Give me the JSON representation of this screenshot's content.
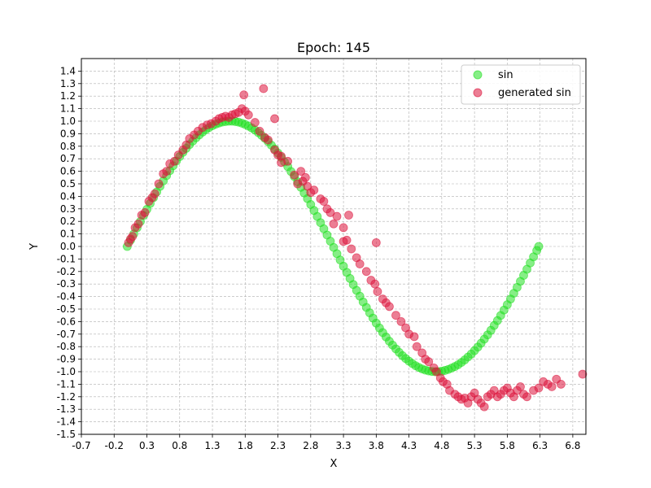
{
  "chart_data": {
    "type": "scatter",
    "title": "Epoch: 145",
    "xlabel": "X",
    "ylabel": "Y",
    "xlim": [
      -0.7,
      7.0
    ],
    "ylim": [
      -1.5,
      1.5
    ],
    "xticks": [
      -0.7,
      -0.2,
      0.3,
      0.8,
      1.3,
      1.8,
      2.3,
      2.8,
      3.3,
      3.8,
      4.3,
      4.8,
      5.3,
      5.8,
      6.3,
      6.8
    ],
    "xtick_labels": [
      "-0.7",
      "-0.2",
      "0.3",
      "0.8",
      "1.3",
      "1.8",
      "2.3",
      "2.8",
      "3.3",
      "3.8",
      "4.3",
      "4.8",
      "5.3",
      "5.8",
      "6.3",
      "6.8"
    ],
    "yticks": [
      -1.5,
      -1.4,
      -1.3,
      -1.2,
      -1.1,
      -1.0,
      -0.9,
      -0.8,
      -0.7,
      -0.6,
      -0.5,
      -0.4,
      -0.3,
      -0.2,
      -0.1,
      0.0,
      0.1,
      0.2,
      0.3,
      0.4,
      0.5,
      0.6,
      0.7,
      0.8,
      0.9,
      1.0,
      1.1,
      1.2,
      1.3,
      1.4
    ],
    "ytick_labels": [
      "-1.5",
      "-1.4",
      "-1.3",
      "-1.2",
      "-1.1",
      "-1.0",
      "-0.9",
      "-0.8",
      "-0.7",
      "-0.6",
      "-0.5",
      "-0.4",
      "-0.3",
      "-0.2",
      "-0.1",
      "0.0",
      "0.1",
      "0.2",
      "0.3",
      "0.4",
      "0.5",
      "0.6",
      "0.7",
      "0.8",
      "0.9",
      "1.0",
      "1.1",
      "1.2",
      "1.3",
      "1.4"
    ],
    "grid": true,
    "legend_position": "top-right",
    "series": [
      {
        "name": "sin",
        "color": "#22e022",
        "x": [
          0.0,
          0.05,
          0.1,
          0.15,
          0.2,
          0.25,
          0.3,
          0.35,
          0.4,
          0.45,
          0.5,
          0.55,
          0.6,
          0.65,
          0.7,
          0.75,
          0.8,
          0.85,
          0.9,
          0.95,
          1.0,
          1.05,
          1.1,
          1.15,
          1.2,
          1.25,
          1.3,
          1.35,
          1.4,
          1.45,
          1.5,
          1.55,
          1.6,
          1.65,
          1.7,
          1.75,
          1.8,
          1.85,
          1.9,
          1.95,
          2.0,
          2.05,
          2.1,
          2.15,
          2.2,
          2.25,
          2.3,
          2.35,
          2.4,
          2.45,
          2.5,
          2.55,
          2.6,
          2.65,
          2.7,
          2.75,
          2.8,
          2.85,
          2.9,
          2.95,
          3.0,
          3.05,
          3.1,
          3.15,
          3.2,
          3.25,
          3.3,
          3.35,
          3.4,
          3.45,
          3.5,
          3.55,
          3.6,
          3.65,
          3.7,
          3.75,
          3.8,
          3.85,
          3.9,
          3.95,
          4.0,
          4.05,
          4.1,
          4.15,
          4.2,
          4.25,
          4.3,
          4.35,
          4.4,
          4.45,
          4.5,
          4.55,
          4.6,
          4.65,
          4.7,
          4.75,
          4.8,
          4.85,
          4.9,
          4.95,
          5.0,
          5.05,
          5.1,
          5.15,
          5.2,
          5.25,
          5.3,
          5.35,
          5.4,
          5.45,
          5.5,
          5.55,
          5.6,
          5.65,
          5.7,
          5.75,
          5.8,
          5.85,
          5.9,
          5.95,
          6.0,
          6.05,
          6.1,
          6.15,
          6.2,
          6.25,
          6.28
        ],
        "y": [
          0.0,
          0.05,
          0.1,
          0.149,
          0.199,
          0.247,
          0.296,
          0.343,
          0.389,
          0.435,
          0.479,
          0.523,
          0.565,
          0.605,
          0.644,
          0.682,
          0.717,
          0.751,
          0.783,
          0.813,
          0.841,
          0.867,
          0.891,
          0.913,
          0.932,
          0.949,
          0.964,
          0.976,
          0.985,
          0.993,
          0.997,
          1.0,
          1.0,
          0.997,
          0.992,
          0.984,
          0.974,
          0.961,
          0.946,
          0.929,
          0.909,
          0.887,
          0.863,
          0.837,
          0.808,
          0.778,
          0.746,
          0.711,
          0.675,
          0.638,
          0.598,
          0.558,
          0.516,
          0.472,
          0.427,
          0.382,
          0.335,
          0.287,
          0.239,
          0.19,
          0.141,
          0.091,
          0.042,
          -0.008,
          -0.058,
          -0.108,
          -0.158,
          -0.207,
          -0.256,
          -0.304,
          -0.351,
          -0.397,
          -0.443,
          -0.487,
          -0.53,
          -0.572,
          -0.612,
          -0.651,
          -0.688,
          -0.723,
          -0.757,
          -0.788,
          -0.818,
          -0.846,
          -0.872,
          -0.895,
          -0.916,
          -0.935,
          -0.952,
          -0.966,
          -0.978,
          -0.987,
          -0.994,
          -0.998,
          -1.0,
          -0.999,
          -0.996,
          -0.99,
          -0.982,
          -0.971,
          -0.959,
          -0.944,
          -0.926,
          -0.906,
          -0.883,
          -0.859,
          -0.832,
          -0.804,
          -0.773,
          -0.74,
          -0.706,
          -0.67,
          -0.631,
          -0.592,
          -0.551,
          -0.508,
          -0.465,
          -0.42,
          -0.374,
          -0.327,
          -0.279,
          -0.231,
          -0.182,
          -0.132,
          -0.083,
          -0.033,
          0.0
        ]
      },
      {
        "name": "generated sin",
        "color": "#dc143c",
        "x": [
          0.02,
          0.05,
          0.08,
          0.12,
          0.17,
          0.22,
          0.27,
          0.33,
          0.38,
          0.42,
          0.48,
          0.55,
          0.6,
          0.65,
          0.72,
          0.78,
          0.85,
          0.9,
          0.95,
          1.02,
          1.08,
          1.15,
          1.22,
          1.28,
          1.35,
          1.4,
          1.45,
          1.5,
          1.55,
          1.6,
          1.65,
          1.7,
          1.75,
          1.8,
          1.85,
          1.95,
          2.02,
          2.1,
          2.15,
          2.25,
          2.3,
          2.35,
          2.45,
          2.55,
          2.6,
          2.68,
          2.72,
          2.75,
          2.8,
          2.85,
          2.95,
          3.0,
          3.05,
          3.1,
          3.2,
          3.3,
          3.35,
          3.42,
          3.5,
          3.55,
          3.65,
          3.72,
          3.78,
          3.82,
          3.9,
          3.95,
          4.0,
          4.1,
          4.18,
          4.25,
          4.3,
          4.38,
          4.42,
          4.5,
          4.55,
          4.6,
          4.68,
          4.72,
          4.78,
          4.82,
          4.88,
          4.92,
          5.0,
          5.05,
          5.1,
          5.15,
          5.2,
          5.25,
          5.3,
          5.35,
          5.4,
          5.45,
          5.5,
          5.55,
          5.6,
          5.65,
          5.7,
          5.75,
          5.8,
          5.85,
          5.9,
          5.95,
          6.0,
          6.05,
          6.1,
          6.2,
          6.28,
          6.35,
          6.42,
          6.48,
          6.55,
          6.62,
          6.95,
          1.78,
          2.08,
          2.25,
          3.38,
          3.8,
          3.3,
          2.35,
          2.65,
          3.15
        ],
        "y": [
          0.03,
          0.06,
          0.08,
          0.15,
          0.18,
          0.25,
          0.27,
          0.36,
          0.39,
          0.42,
          0.5,
          0.58,
          0.6,
          0.66,
          0.68,
          0.73,
          0.77,
          0.81,
          0.86,
          0.89,
          0.92,
          0.95,
          0.97,
          0.98,
          1.0,
          1.02,
          1.03,
          1.04,
          1.03,
          1.05,
          1.06,
          1.07,
          1.1,
          1.08,
          1.05,
          0.99,
          0.92,
          0.87,
          0.85,
          0.77,
          0.73,
          0.72,
          0.68,
          0.57,
          0.5,
          0.52,
          0.55,
          0.48,
          0.43,
          0.45,
          0.38,
          0.36,
          0.3,
          0.27,
          0.24,
          0.15,
          0.05,
          -0.02,
          -0.09,
          -0.14,
          -0.2,
          -0.27,
          -0.3,
          -0.36,
          -0.42,
          -0.45,
          -0.48,
          -0.55,
          -0.6,
          -0.65,
          -0.7,
          -0.72,
          -0.8,
          -0.85,
          -0.9,
          -0.92,
          -0.97,
          -1.0,
          -1.05,
          -1.08,
          -1.1,
          -1.15,
          -1.18,
          -1.2,
          -1.22,
          -1.21,
          -1.25,
          -1.2,
          -1.17,
          -1.22,
          -1.25,
          -1.28,
          -1.2,
          -1.18,
          -1.15,
          -1.2,
          -1.18,
          -1.15,
          -1.13,
          -1.17,
          -1.2,
          -1.15,
          -1.12,
          -1.18,
          -1.2,
          -1.15,
          -1.13,
          -1.08,
          -1.1,
          -1.12,
          -1.06,
          -1.1,
          -1.02,
          1.21,
          1.26,
          1.02,
          0.25,
          0.03,
          0.04,
          0.67,
          0.6,
          0.18
        ]
      }
    ]
  }
}
